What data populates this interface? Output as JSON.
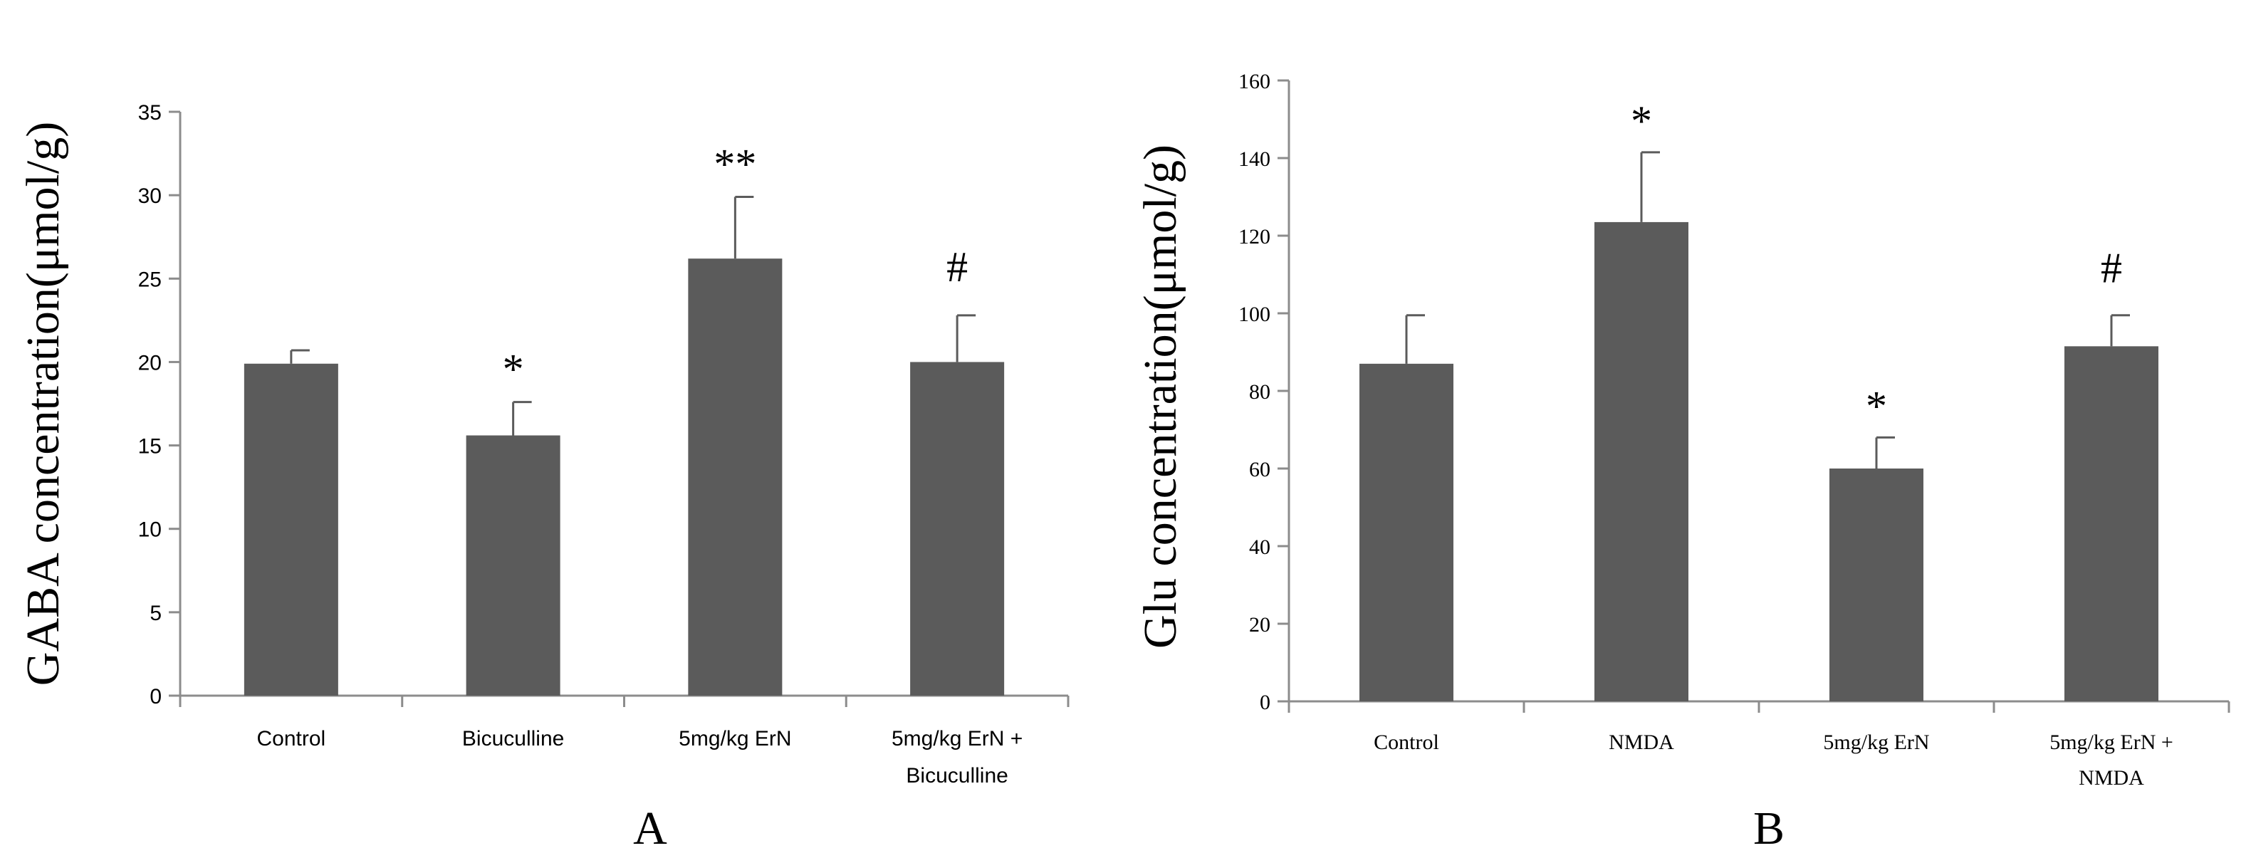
{
  "chart_data": [
    {
      "type": "bar",
      "panel_label": "A",
      "title": "",
      "xlabel": "",
      "ylabel": "GABA concentration(μmol/g)",
      "ylim": [
        0,
        35
      ],
      "yticks": [
        0,
        5,
        10,
        15,
        20,
        25,
        30,
        35
      ],
      "categories": [
        [
          "Control"
        ],
        [
          "Bicuculline"
        ],
        [
          "5mg/kg ErN"
        ],
        [
          "5mg/kg ErN +",
          "Bicuculline"
        ]
      ],
      "values": [
        19.9,
        15.6,
        26.2,
        20.0
      ],
      "errors": [
        0.8,
        2.0,
        3.7,
        2.8
      ],
      "annotations": [
        "",
        "*",
        "**",
        "#"
      ],
      "bar_color": "#5b5b5b"
    },
    {
      "type": "bar",
      "panel_label": "B",
      "title": "",
      "xlabel": "",
      "ylabel": "Glu concentration(μmol/g)",
      "ylim": [
        0,
        160
      ],
      "yticks": [
        0,
        20,
        40,
        60,
        80,
        100,
        120,
        140,
        160
      ],
      "categories": [
        [
          "Control"
        ],
        [
          "NMDA"
        ],
        [
          "5mg/kg ErN"
        ],
        [
          "5mg/kg  ErN +",
          "NMDA"
        ]
      ],
      "values": [
        87,
        123.5,
        60,
        91.5
      ],
      "errors": [
        12.5,
        18,
        8,
        8
      ],
      "annotations": [
        "",
        "*",
        "*",
        "#"
      ],
      "bar_color": "#5b5b5b"
    }
  ]
}
